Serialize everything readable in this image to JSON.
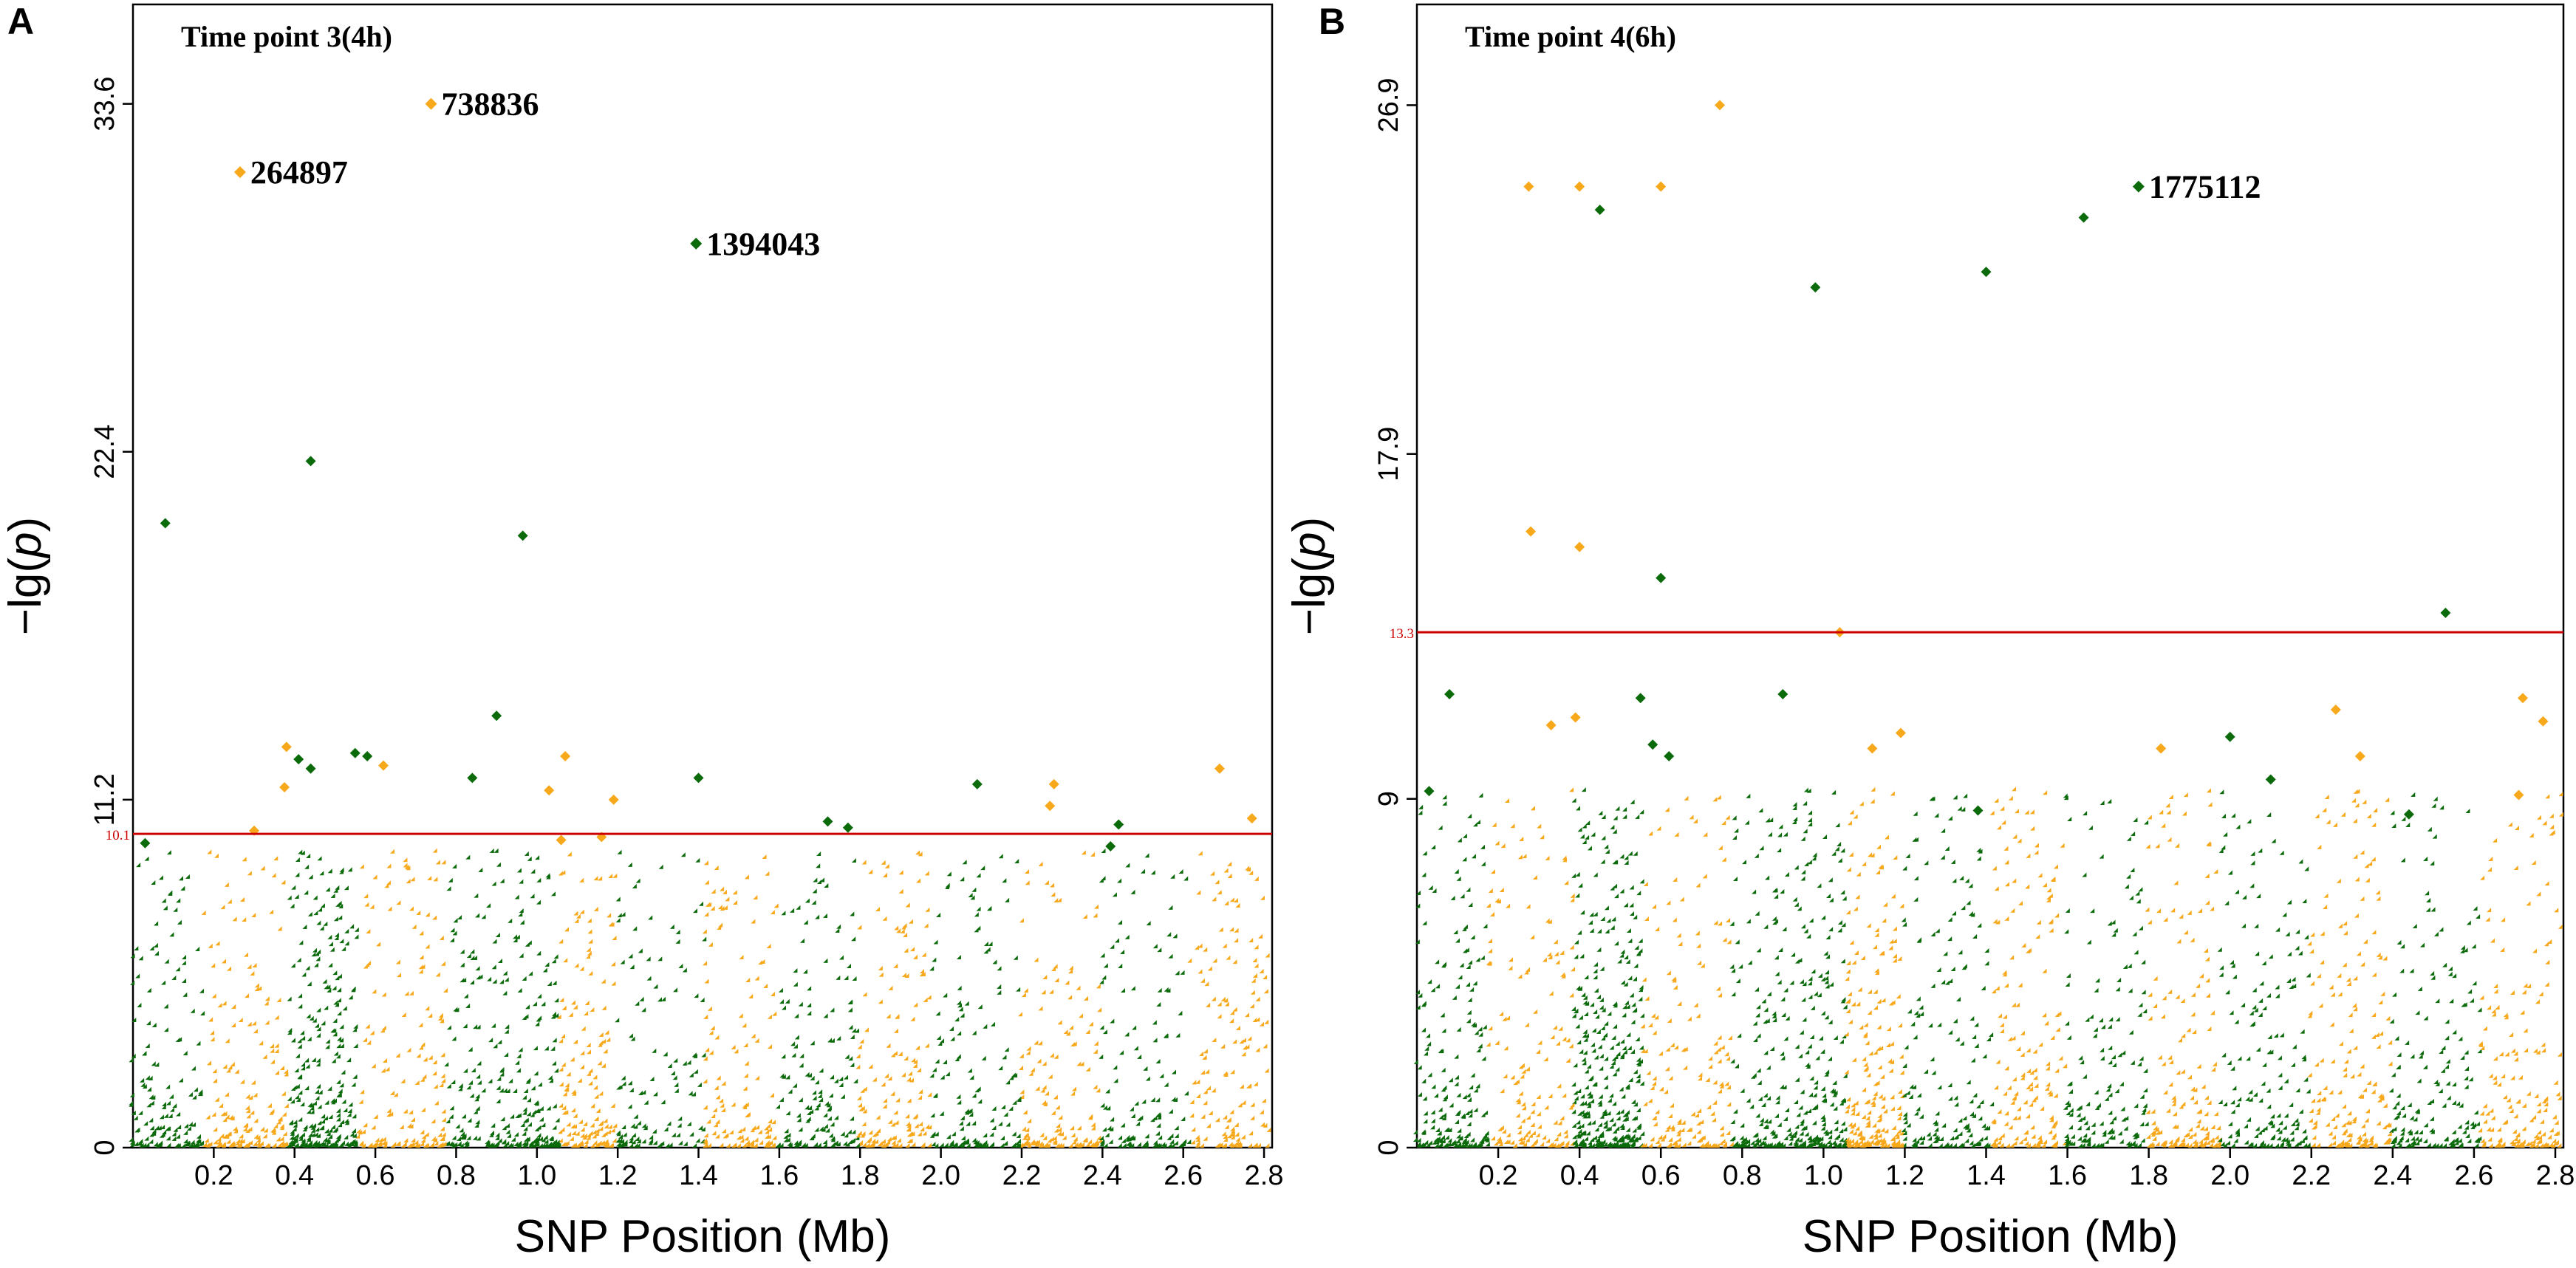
{
  "colors": {
    "green": "#0b6b0b",
    "orange": "#f7a81b",
    "threshold": "#cc0000"
  },
  "chart_data": [
    {
      "type": "scatter",
      "panel": "A",
      "title": "Time point 3(4h)",
      "xlabel": "SNP Position (Mb)",
      "ylabel": "−lg(p)",
      "xlim": [
        0,
        2.82
      ],
      "ylim": [
        0,
        36.8
      ],
      "xticks": [
        0.2,
        0.4,
        0.6,
        0.8,
        1.0,
        1.2,
        1.4,
        1.6,
        1.8,
        2.0,
        2.2,
        2.4,
        2.6,
        2.8
      ],
      "yticks": [
        0,
        11.2,
        22.4,
        33.6
      ],
      "threshold": 10.1,
      "threshold_label": "10.1",
      "highlighted": [
        {
          "id": "738836",
          "x": 0.738,
          "y": 33.6,
          "color": "orange"
        },
        {
          "id": "264897",
          "x": 0.265,
          "y": 31.4,
          "color": "orange"
        },
        {
          "id": "1394043",
          "x": 1.394,
          "y": 29.1,
          "color": "green"
        }
      ],
      "points": [
        {
          "x": 0.08,
          "y": 20.1,
          "color": "green"
        },
        {
          "x": 0.44,
          "y": 22.1,
          "color": "green"
        },
        {
          "x": 0.965,
          "y": 19.7,
          "color": "green"
        },
        {
          "x": 0.9,
          "y": 13.9,
          "color": "green"
        },
        {
          "x": 0.38,
          "y": 12.9,
          "color": "orange"
        },
        {
          "x": 0.41,
          "y": 12.5,
          "color": "green"
        },
        {
          "x": 0.375,
          "y": 11.6,
          "color": "orange"
        },
        {
          "x": 0.44,
          "y": 12.2,
          "color": "green"
        },
        {
          "x": 0.55,
          "y": 12.7,
          "color": "green"
        },
        {
          "x": 0.58,
          "y": 12.6,
          "color": "green"
        },
        {
          "x": 0.62,
          "y": 12.3,
          "color": "orange"
        },
        {
          "x": 0.84,
          "y": 11.9,
          "color": "green"
        },
        {
          "x": 1.07,
          "y": 12.6,
          "color": "orange"
        },
        {
          "x": 1.03,
          "y": 11.5,
          "color": "orange"
        },
        {
          "x": 1.19,
          "y": 11.2,
          "color": "orange"
        },
        {
          "x": 1.4,
          "y": 11.9,
          "color": "green"
        },
        {
          "x": 2.09,
          "y": 11.7,
          "color": "green"
        },
        {
          "x": 2.28,
          "y": 11.7,
          "color": "orange"
        },
        {
          "x": 2.27,
          "y": 11.0,
          "color": "orange"
        },
        {
          "x": 2.69,
          "y": 12.2,
          "color": "orange"
        },
        {
          "x": 2.77,
          "y": 10.6,
          "color": "orange"
        },
        {
          "x": 0.3,
          "y": 10.2,
          "color": "orange"
        },
        {
          "x": 1.72,
          "y": 10.5,
          "color": "green"
        },
        {
          "x": 1.77,
          "y": 10.3,
          "color": "green"
        },
        {
          "x": 2.44,
          "y": 10.4,
          "color": "green"
        },
        {
          "x": 1.06,
          "y": 9.9,
          "color": "orange"
        },
        {
          "x": 1.16,
          "y": 10.0,
          "color": "orange"
        },
        {
          "x": 0.03,
          "y": 9.8,
          "color": "green"
        },
        {
          "x": 2.42,
          "y": 9.7,
          "color": "green"
        }
      ]
    },
    {
      "type": "scatter",
      "panel": "B",
      "title": "Time point 4(6h)",
      "xlabel": "SNP Position (Mb)",
      "ylabel": "−lg(p)",
      "xlim": [
        0,
        2.82
      ],
      "ylim": [
        0,
        29.5
      ],
      "xticks": [
        0.2,
        0.4,
        0.6,
        0.8,
        1.0,
        1.2,
        1.4,
        1.6,
        1.8,
        2.0,
        2.2,
        2.4,
        2.6,
        2.8
      ],
      "yticks": [
        0,
        9,
        17.9,
        26.9
      ],
      "threshold": 13.3,
      "threshold_label": "13.3",
      "highlighted": [
        {
          "id": "1775112",
          "x": 1.775,
          "y": 24.8,
          "color": "green"
        }
      ],
      "points": [
        {
          "x": 0.745,
          "y": 26.9,
          "color": "orange"
        },
        {
          "x": 0.275,
          "y": 24.8,
          "color": "orange"
        },
        {
          "x": 0.4,
          "y": 24.8,
          "color": "orange"
        },
        {
          "x": 0.6,
          "y": 24.8,
          "color": "orange"
        },
        {
          "x": 0.45,
          "y": 24.2,
          "color": "green"
        },
        {
          "x": 1.64,
          "y": 24.0,
          "color": "green"
        },
        {
          "x": 1.4,
          "y": 22.6,
          "color": "green"
        },
        {
          "x": 0.98,
          "y": 22.2,
          "color": "green"
        },
        {
          "x": 0.28,
          "y": 15.9,
          "color": "orange"
        },
        {
          "x": 0.4,
          "y": 15.5,
          "color": "orange"
        },
        {
          "x": 0.6,
          "y": 14.7,
          "color": "green"
        },
        {
          "x": 1.04,
          "y": 13.3,
          "color": "orange"
        },
        {
          "x": 2.53,
          "y": 13.8,
          "color": "green"
        },
        {
          "x": 0.08,
          "y": 11.7,
          "color": "green"
        },
        {
          "x": 0.55,
          "y": 11.6,
          "color": "green"
        },
        {
          "x": 0.9,
          "y": 11.7,
          "color": "green"
        },
        {
          "x": 2.72,
          "y": 11.6,
          "color": "orange"
        },
        {
          "x": 2.26,
          "y": 11.3,
          "color": "orange"
        },
        {
          "x": 2.77,
          "y": 11.0,
          "color": "orange"
        },
        {
          "x": 0.33,
          "y": 10.9,
          "color": "orange"
        },
        {
          "x": 0.39,
          "y": 11.1,
          "color": "orange"
        },
        {
          "x": 1.19,
          "y": 10.7,
          "color": "orange"
        },
        {
          "x": 2.0,
          "y": 10.6,
          "color": "green"
        },
        {
          "x": 0.58,
          "y": 10.4,
          "color": "green"
        },
        {
          "x": 0.62,
          "y": 10.1,
          "color": "green"
        },
        {
          "x": 1.12,
          "y": 10.3,
          "color": "orange"
        },
        {
          "x": 1.83,
          "y": 10.3,
          "color": "orange"
        },
        {
          "x": 2.32,
          "y": 10.1,
          "color": "orange"
        },
        {
          "x": 2.1,
          "y": 9.5,
          "color": "green"
        },
        {
          "x": 0.03,
          "y": 9.2,
          "color": "green"
        },
        {
          "x": 1.38,
          "y": 8.7,
          "color": "green"
        },
        {
          "x": 2.44,
          "y": 8.6,
          "color": "green"
        },
        {
          "x": 2.71,
          "y": 9.1,
          "color": "orange"
        }
      ],
      "background_note": "dense bottom cloud"
    }
  ]
}
